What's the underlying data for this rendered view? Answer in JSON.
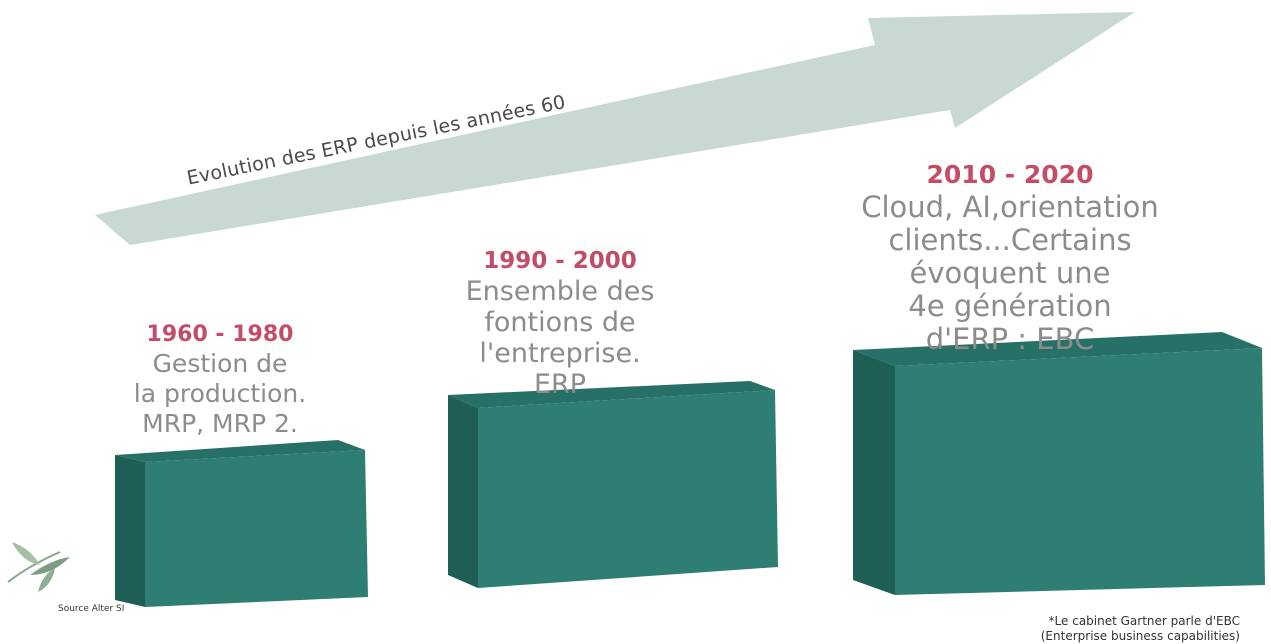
{
  "arrow": {
    "label": "Evolution des ERP depuis les années 60",
    "color": "#c7d9d2"
  },
  "eras": [
    {
      "years": "1960 - 1980",
      "description": "Gestion de\nla production.\nMRP, MRP 2.",
      "bar_level": 1
    },
    {
      "years": "1990 - 2000",
      "description": "Ensemble des\nfontions de\nl'entreprise.\nERP",
      "bar_level": 2
    },
    {
      "years": "2010 - 2020",
      "description": "Cloud, AI,orientation\nclients...Certains\névoquent une\n4e génération\nd'ERP : EBC",
      "bar_level": 3
    }
  ],
  "colors": {
    "bar_front": "#2f7e73",
    "bar_top": "#267067",
    "bar_side": "#1e5e55",
    "year_text": "#c34c67",
    "description_text": "#8c8c8c"
  },
  "source": "Source Alter SI",
  "footnote": "*Le cabinet Gartner parle d'EBC\n(Enterprise business capabilities)"
}
